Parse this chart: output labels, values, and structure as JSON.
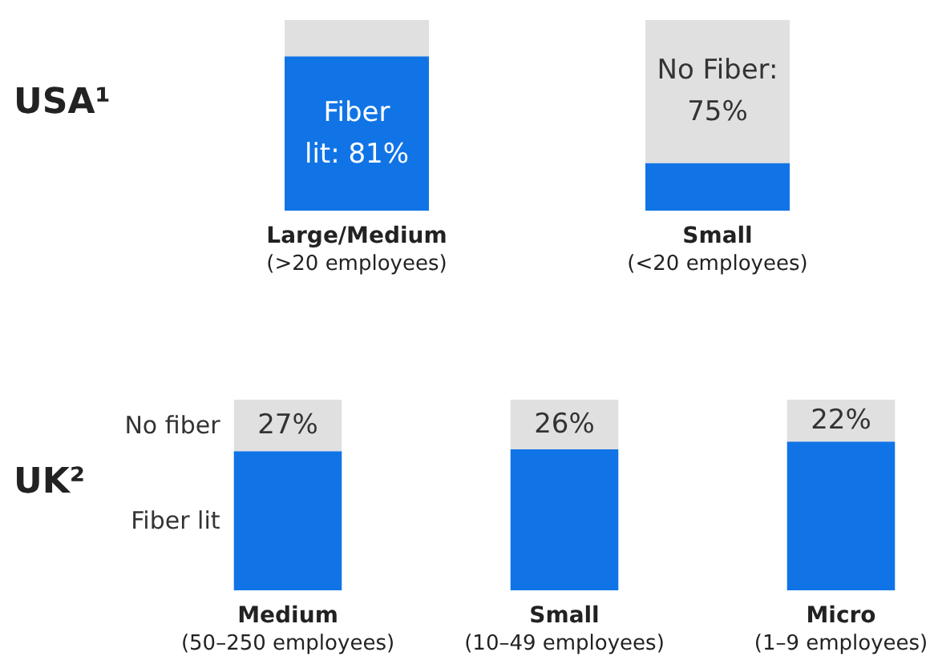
{
  "chart_data": [
    {
      "type": "bar",
      "stacked": true,
      "title": "USA¹",
      "categories": [
        "Large/Medium\n(>20 employees)",
        "Small\n(<20 employees)"
      ],
      "series": [
        {
          "color": "#1174e6",
          "values": [
            81,
            25
          ],
          "value_labels": [
            "Fiber\nlit: 81%",
            null
          ]
        },
        {
          "color": "#e0e0e0",
          "values": [
            19,
            75
          ],
          "value_labels": [
            null,
            "No Fiber:\n75%"
          ]
        }
      ]
    },
    {
      "type": "bar",
      "stacked": true,
      "title": "UK²",
      "categories": [
        "Medium\n(50–250 employees)",
        "Small\n(10–49 employees)",
        "Micro\n(1–9 employees)"
      ],
      "series": [
        {
          "name": "Fiber lit",
          "color": "#1174e6",
          "values": [
            73,
            74,
            78
          ]
        },
        {
          "name": "No fiber",
          "color": "#e0e0e0",
          "values": [
            27,
            26,
            22
          ],
          "value_labels": [
            "27%",
            "26%",
            "22%"
          ]
        }
      ]
    }
  ]
}
